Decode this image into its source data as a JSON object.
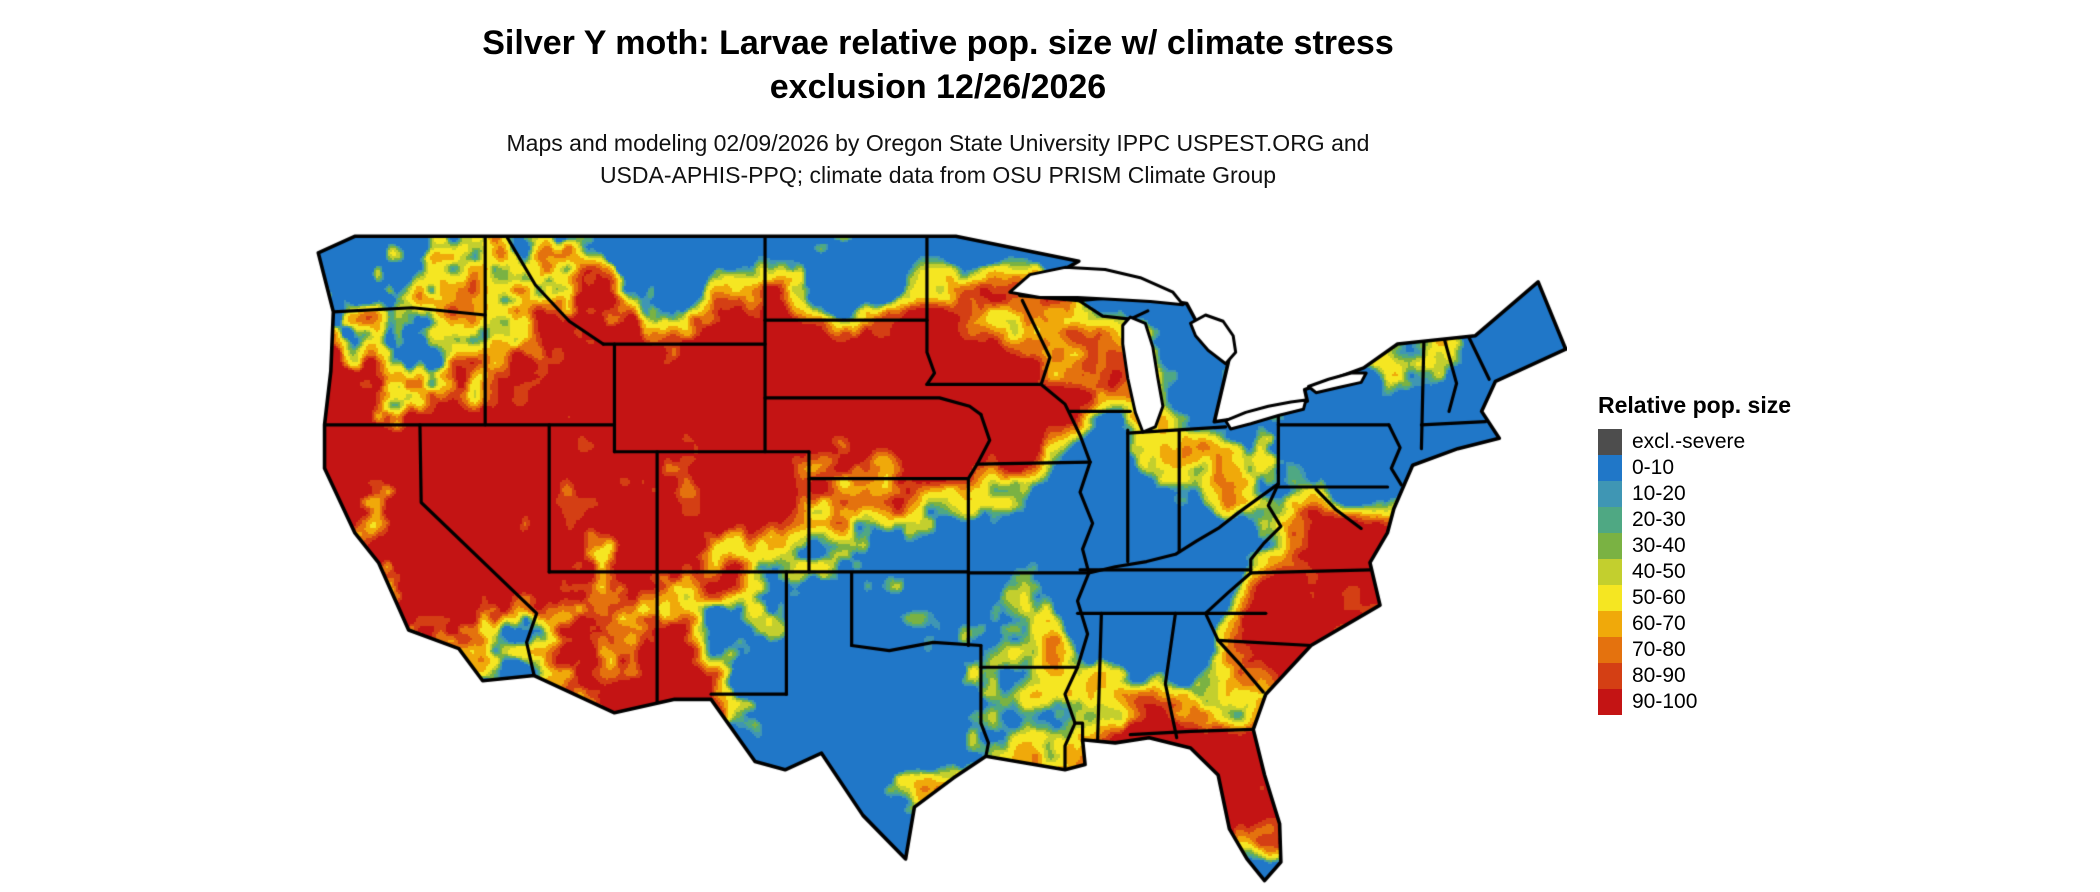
{
  "header": {
    "title_line1": "Silver Y moth: Larvae relative pop. size w/ climate stress",
    "title_line2": "exclusion 12/26/2026",
    "subtitle_line1": "Maps and modeling 02/09/2026 by Oregon State University IPPC USPEST.ORG and",
    "subtitle_line2": "USDA-APHIS-PPQ; climate data from OSU PRISM Climate Group"
  },
  "legend": {
    "title": "Relative pop. size",
    "items": [
      {
        "label": "excl.-severe",
        "color": "#4d4d4d"
      },
      {
        "label": "0-10",
        "color": "#2077c8"
      },
      {
        "label": "10-20",
        "color": "#3f96b4"
      },
      {
        "label": "20-30",
        "color": "#4fa883"
      },
      {
        "label": "30-40",
        "color": "#7ab243"
      },
      {
        "label": "40-50",
        "color": "#c3cf2e"
      },
      {
        "label": "50-60",
        "color": "#f5e622"
      },
      {
        "label": "60-70",
        "color": "#f0a90a"
      },
      {
        "label": "70-80",
        "color": "#e4720e"
      },
      {
        "label": "80-90",
        "color": "#d43f14"
      },
      {
        "label": "90-100",
        "color": "#c41414"
      }
    ]
  },
  "map": {
    "border_color": "#000000",
    "water_color": "#ffffff"
  }
}
